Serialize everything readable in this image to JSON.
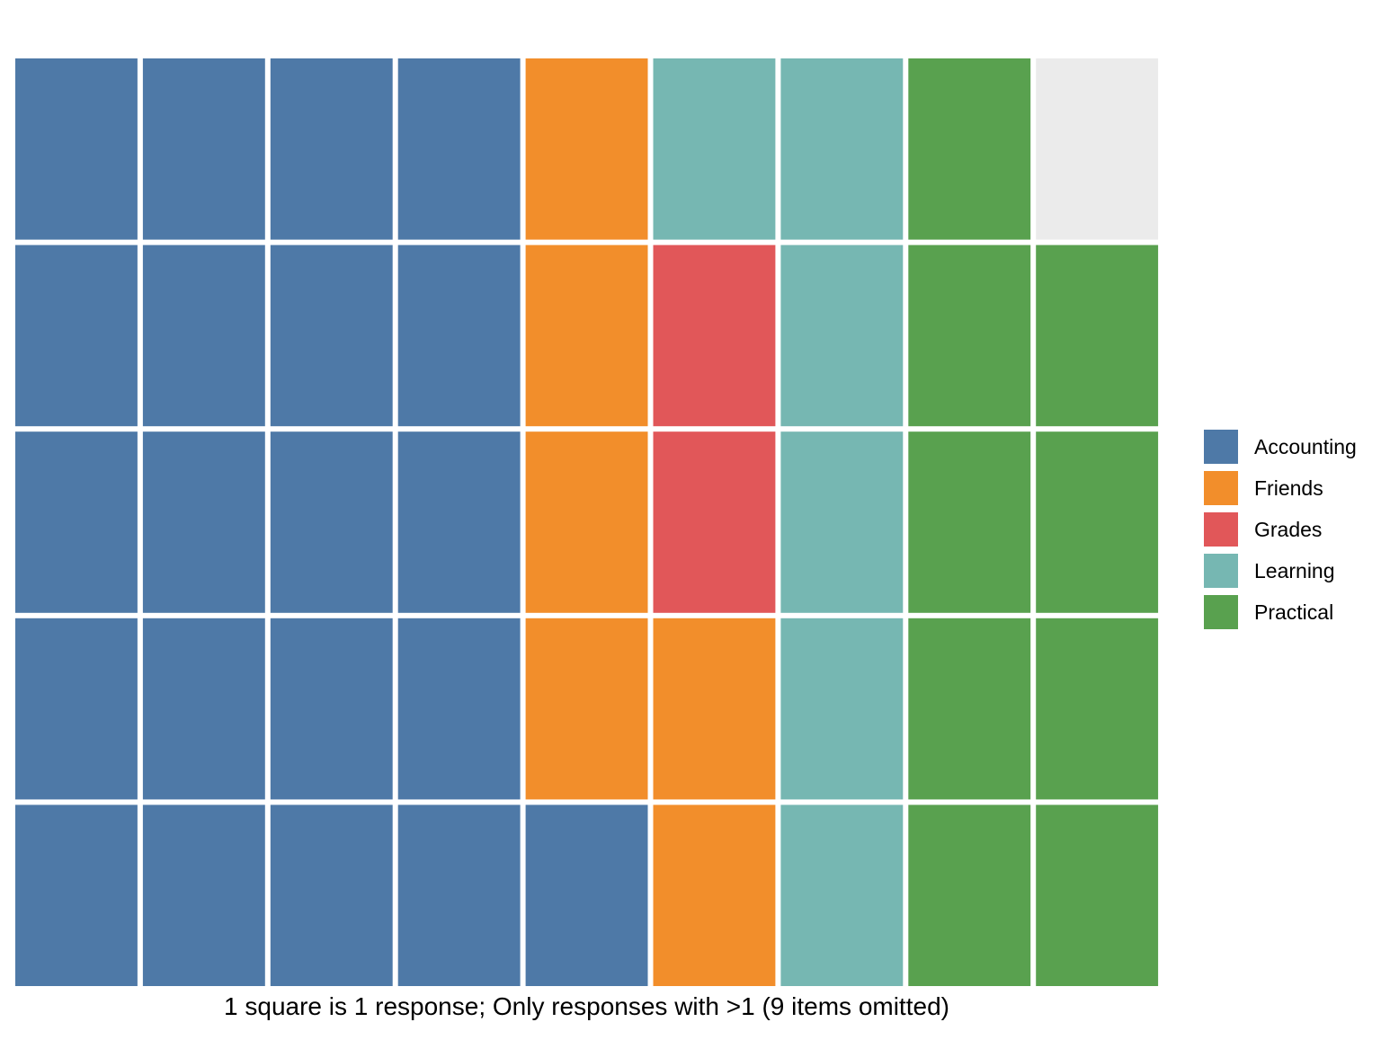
{
  "chart_data": {
    "type": "waffle",
    "title": "",
    "caption": "1 square is 1 response; Only responses with >1 (9 items omitted)",
    "unit_note": "1 square is 1 response",
    "rows": 5,
    "columns": 9,
    "fill_order": "column-major, bottom-to-top",
    "categories": [
      "Accounting",
      "Friends",
      "Grades",
      "Learning",
      "Practical"
    ],
    "values": [
      21,
      6,
      2,
      6,
      9
    ],
    "total": 44,
    "empty_cells": 1,
    "colors": {
      "Accounting": "#4e79a7",
      "Friends": "#f28e2b",
      "Grades": "#e15759",
      "Learning": "#76b7b2",
      "Practical": "#59a14f",
      "empty": "#ebebeb"
    },
    "legend": {
      "position": "right",
      "entries": [
        "Accounting",
        "Friends",
        "Grades",
        "Learning",
        "Practical"
      ]
    },
    "grid": false
  }
}
